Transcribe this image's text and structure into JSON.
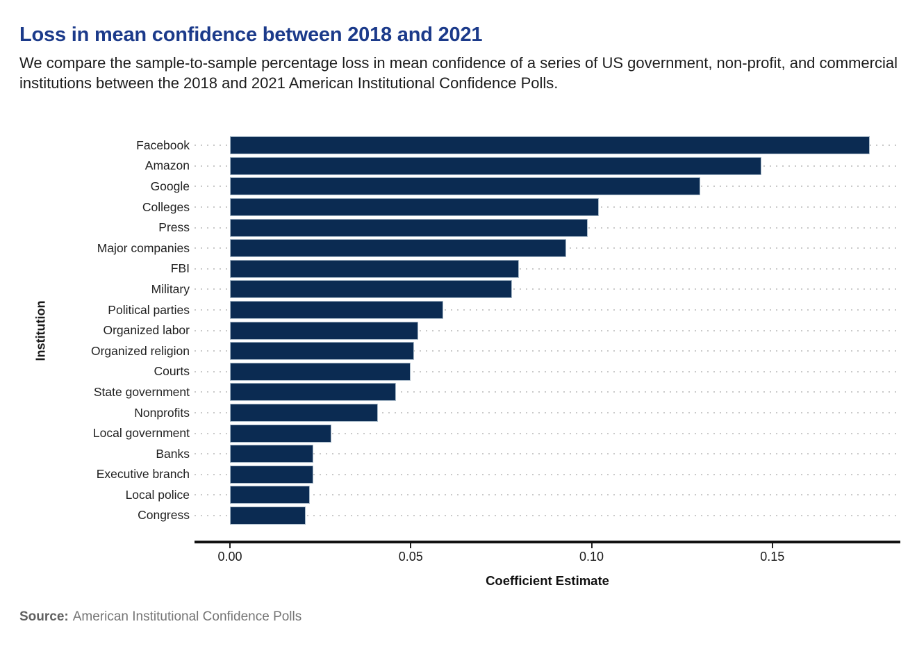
{
  "header": {
    "title": "Loss in mean confidence between 2018 and 2021",
    "subtitle": "We compare the sample-to-sample percentage loss in mean confidence of a series of US government, non-profit, and commercial institutions between the 2018 and 2021 American Institutional Confidence Polls."
  },
  "footer": {
    "source_label": "Source:",
    "source_text": "American Institutional Confidence Polls"
  },
  "colors": {
    "title_color": "#1b3a8a",
    "bar_fill": "#0b2b52",
    "bar_border": "#a9bac9",
    "grid_dot": "#c9c9c9",
    "source_color": "#757575"
  },
  "chart_data": {
    "type": "bar",
    "orientation": "horizontal",
    "title": "Loss in mean confidence between 2018 and 2021",
    "xlabel": "Coefficient Estimate",
    "ylabel": "Institution",
    "categories": [
      "Facebook",
      "Amazon",
      "Google",
      "Colleges",
      "Press",
      "Major companies",
      "FBI",
      "Military",
      "Political parties",
      "Organized labor",
      "Organized religion",
      "Courts",
      "State government",
      "Nonprofits",
      "Local government",
      "Banks",
      "Executive branch",
      "Local police",
      "Congress"
    ],
    "values": [
      0.177,
      0.147,
      0.13,
      0.102,
      0.099,
      0.093,
      0.08,
      0.078,
      0.059,
      0.052,
      0.051,
      0.05,
      0.046,
      0.041,
      0.028,
      0.023,
      0.023,
      0.022,
      0.021
    ],
    "xlim": [
      -0.0098,
      0.1854
    ],
    "xticks": {
      "values": [
        0,
        0.05,
        0.1,
        0.15
      ],
      "labels": [
        "0.00",
        "0.05",
        "0.10",
        "0.15"
      ]
    },
    "grid": "horizontal-dotted",
    "legend": "none"
  }
}
